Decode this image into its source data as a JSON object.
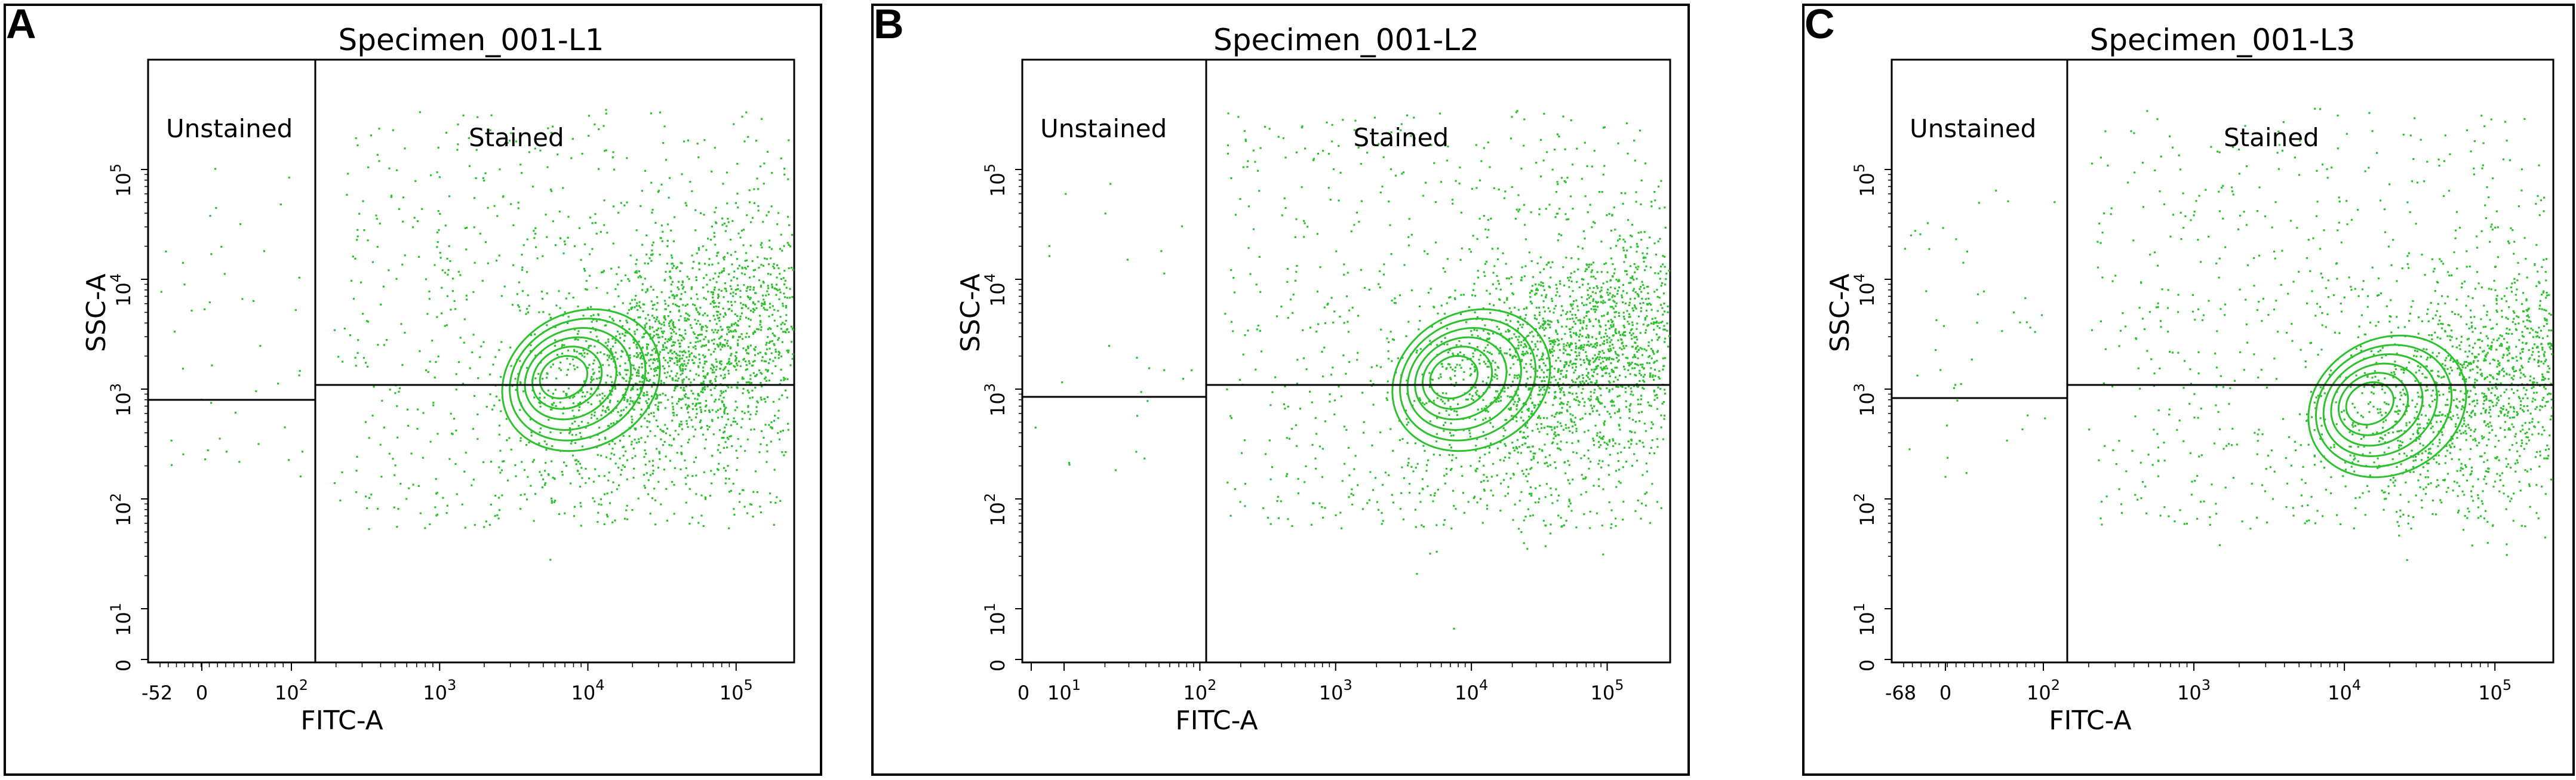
{
  "figure": {
    "panels": [
      {
        "letter": "A",
        "title": "Specimen_001-L1",
        "xlabel": "FITC-A",
        "ylabel": "SSC-A",
        "gates": {
          "left": "Unstained",
          "right": "Stained"
        },
        "x_ticks": [
          "-52",
          "0",
          "10^2",
          "10^3",
          "10^4",
          "10^5"
        ],
        "y_ticks": [
          "0",
          "10^1",
          "10^2",
          "10^3",
          "10^4",
          "10^5"
        ]
      },
      {
        "letter": "B",
        "title": "Specimen_001-L2",
        "xlabel": "FITC-A",
        "ylabel": "SSC-A",
        "gates": {
          "left": "Unstained",
          "right": "Stained"
        },
        "x_ticks": [
          "0",
          "10^1",
          "10^2",
          "10^3",
          "10^4",
          "10^5"
        ],
        "y_ticks": [
          "0",
          "10^1",
          "10^2",
          "10^3",
          "10^4",
          "10^5"
        ]
      },
      {
        "letter": "C",
        "title": "Specimen_001-L3",
        "xlabel": "FITC-A",
        "ylabel": "SSC-A",
        "gates": {
          "left": "Unstained",
          "right": "Stained"
        },
        "x_ticks": [
          "-68",
          "0",
          "10^2",
          "10^3",
          "10^4",
          "10^5"
        ],
        "y_ticks": [
          "0",
          "10^1",
          "10^2",
          "10^3",
          "10^4",
          "10^5"
        ]
      }
    ]
  },
  "chart_data": [
    {
      "type": "scatter",
      "title": "Specimen_001-L1",
      "xlabel": "FITC-A",
      "ylabel": "SSC-A",
      "x_scale": "biexponential",
      "y_scale": "log",
      "xlim": [
        -52,
        250000
      ],
      "ylim": [
        0,
        250000
      ],
      "x_ticks": [
        "-52",
        "0",
        "10^2",
        "10^3",
        "10^4",
        "10^5"
      ],
      "y_ticks": [
        "0",
        "10^1",
        "10^2",
        "10^3",
        "10^4",
        "10^5"
      ],
      "point_color": "#22bb22",
      "gates": [
        {
          "name": "Unstained",
          "x_max": 200,
          "y_min": 800
        },
        {
          "name": "Stained",
          "x_min": 200,
          "y_min": 1000
        }
      ],
      "population_center": {
        "x": 6500,
        "y": 1300
      },
      "contour_levels": 6
    },
    {
      "type": "scatter",
      "title": "Specimen_001-L2",
      "xlabel": "FITC-A",
      "ylabel": "SSC-A",
      "x_scale": "log",
      "y_scale": "log",
      "xlim": [
        0,
        250000
      ],
      "ylim": [
        0,
        250000
      ],
      "x_ticks": [
        "0",
        "10^1",
        "10^2",
        "10^3",
        "10^4",
        "10^5"
      ],
      "y_ticks": [
        "0",
        "10^1",
        "10^2",
        "10^3",
        "10^4",
        "10^5"
      ],
      "point_color": "#22bb22",
      "gates": [
        {
          "name": "Unstained",
          "x_max": 200,
          "y_min": 800
        },
        {
          "name": "Stained",
          "x_min": 200,
          "y_min": 1000
        }
      ],
      "population_center": {
        "x": 7000,
        "y": 1300
      },
      "contour_levels": 6
    },
    {
      "type": "scatter",
      "title": "Specimen_001-L3",
      "xlabel": "FITC-A",
      "ylabel": "SSC-A",
      "x_scale": "biexponential",
      "y_scale": "log",
      "xlim": [
        -68,
        250000
      ],
      "ylim": [
        0,
        250000
      ],
      "x_ticks": [
        "-68",
        "0",
        "10^2",
        "10^3",
        "10^4",
        "10^5"
      ],
      "y_ticks": [
        "0",
        "10^1",
        "10^2",
        "10^3",
        "10^4",
        "10^5"
      ],
      "point_color": "#22bb22",
      "gates": [
        {
          "name": "Unstained",
          "x_max": 200,
          "y_min": 800
        },
        {
          "name": "Stained",
          "x_min": 200,
          "y_min": 1000
        }
      ],
      "population_center": {
        "x": 14000,
        "y": 750
      },
      "contour_levels": 6
    }
  ]
}
